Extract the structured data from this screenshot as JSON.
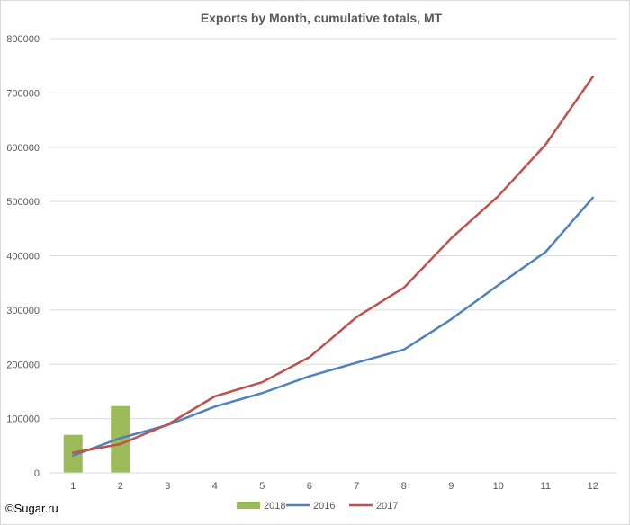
{
  "chart_data": {
    "type": "bar+line",
    "title": "Exports by Month, cumulative totals, MT",
    "xlabel": "",
    "ylabel": "",
    "categories": [
      "1",
      "2",
      "3",
      "4",
      "5",
      "6",
      "7",
      "8",
      "9",
      "10",
      "11",
      "12"
    ],
    "ylim": [
      0,
      800000
    ],
    "yticks": [
      "0",
      "100000",
      "200000",
      "300000",
      "400000",
      "500000",
      "600000",
      "700000",
      "800000"
    ],
    "grid": true,
    "legend_position": "bottom",
    "series": [
      {
        "name": "2018",
        "kind": "bar",
        "color": "#9bbb59",
        "values": [
          70000,
          123000,
          null,
          null,
          null,
          null,
          null,
          null,
          null,
          null,
          null,
          null
        ]
      },
      {
        "name": "2016",
        "kind": "line",
        "color": "#4f81bd",
        "values": [
          32000,
          64000,
          88000,
          122000,
          147000,
          178000,
          203000,
          227000,
          283000,
          346000,
          407000,
          507000
        ]
      },
      {
        "name": "2017",
        "kind": "line",
        "color": "#c0504d",
        "values": [
          37000,
          53000,
          89000,
          141000,
          167000,
          213000,
          287000,
          341000,
          432000,
          510000,
          605000,
          730000
        ]
      }
    ]
  },
  "footer": {
    "copyright": "©Sugar.ru"
  }
}
